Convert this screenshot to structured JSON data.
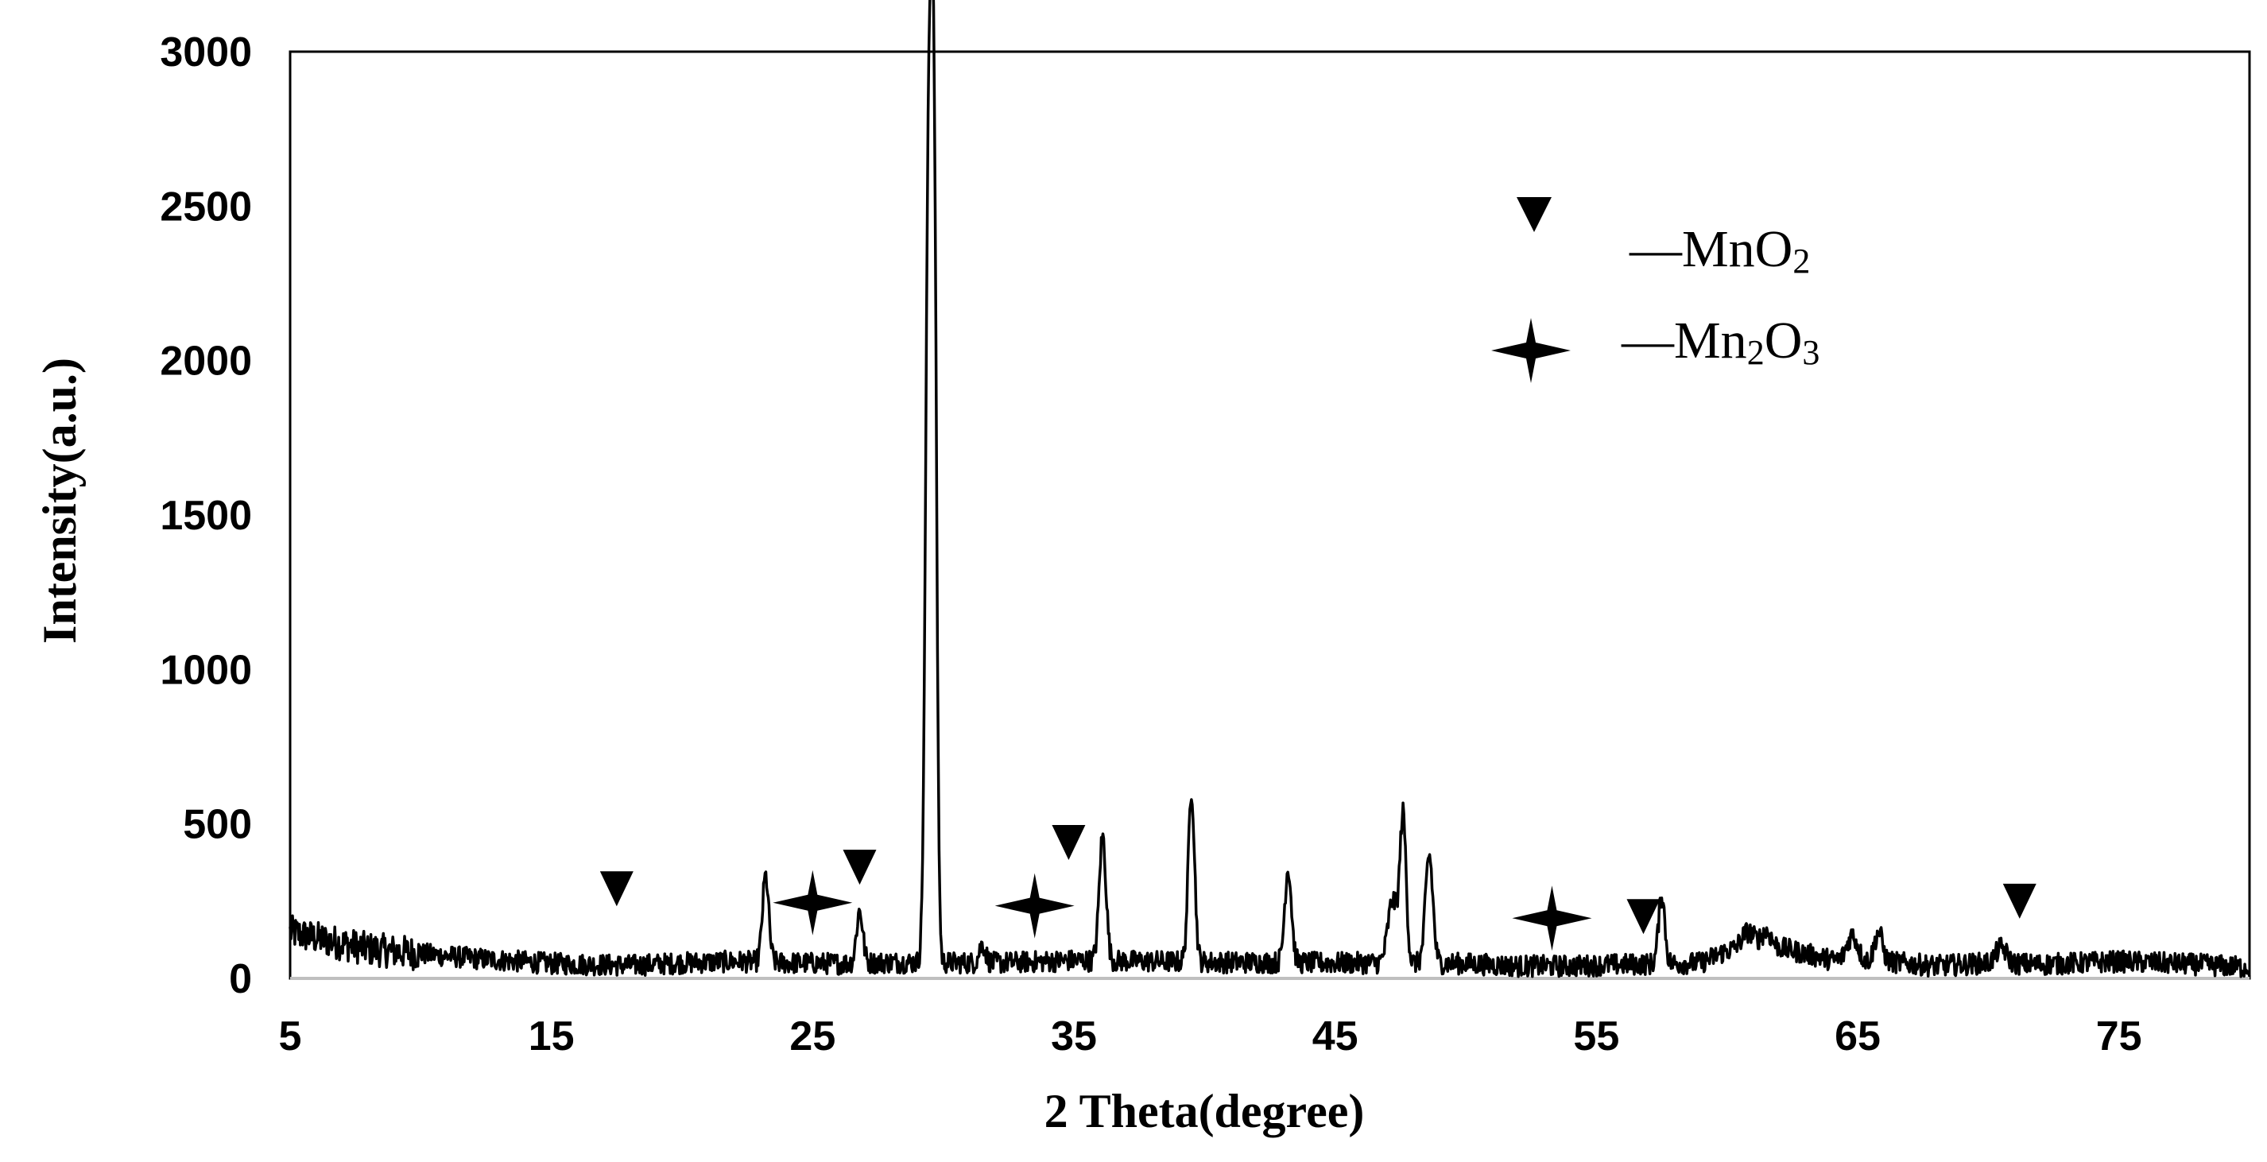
{
  "chart_data": {
    "type": "line",
    "title": "",
    "xlabel": "2 Theta(degree)",
    "ylabel": "Intensity(a.u.)",
    "xlim": [
      5,
      80
    ],
    "ylim": [
      0,
      3000
    ],
    "x_ticks": [
      5,
      15,
      25,
      35,
      45,
      55,
      65,
      75
    ],
    "y_ticks": [
      0,
      500,
      1000,
      1500,
      2000,
      2500,
      3000
    ],
    "grid": false,
    "legend_position": "top-right",
    "baseline": {
      "x": [
        5,
        6,
        8,
        10,
        12,
        15,
        18,
        20,
        22,
        24,
        26,
        28,
        32,
        35,
        38,
        41,
        42,
        45,
        46,
        50,
        52,
        54,
        56,
        59,
        60,
        62,
        64,
        66,
        68,
        70,
        72,
        75,
        78,
        80
      ],
      "y": [
        150,
        130,
        95,
        80,
        65,
        48,
        42,
        50,
        55,
        50,
        48,
        52,
        50,
        58,
        55,
        52,
        52,
        50,
        50,
        48,
        40,
        40,
        45,
        50,
        90,
        100,
        60,
        55,
        40,
        50,
        45,
        55,
        45,
        35
      ]
    },
    "peaks": [
      {
        "x": 23.2,
        "y": 330,
        "w": 0.12
      },
      {
        "x": 26.8,
        "y": 220,
        "w": 0.12
      },
      {
        "x": 29.45,
        "y": 2720,
        "w": 0.12
      },
      {
        "x": 29.65,
        "y": 2300,
        "w": 0.1
      },
      {
        "x": 31.5,
        "y": 110,
        "w": 0.12
      },
      {
        "x": 36.1,
        "y": 460,
        "w": 0.13
      },
      {
        "x": 39.5,
        "y": 610,
        "w": 0.12
      },
      {
        "x": 43.2,
        "y": 355,
        "w": 0.13
      },
      {
        "x": 47.2,
        "y": 250,
        "w": 0.18
      },
      {
        "x": 47.6,
        "y": 520,
        "w": 0.12
      },
      {
        "x": 48.6,
        "y": 400,
        "w": 0.14
      },
      {
        "x": 57.5,
        "y": 270,
        "w": 0.12
      },
      {
        "x": 60.8,
        "y": 150,
        "w": 0.25
      },
      {
        "x": 61.5,
        "y": 150,
        "w": 0.2
      },
      {
        "x": 64.8,
        "y": 140,
        "w": 0.2
      },
      {
        "x": 65.8,
        "y": 150,
        "w": 0.15
      },
      {
        "x": 70.5,
        "y": 100,
        "w": 0.2
      }
    ],
    "markers_mno2": [
      {
        "x": 17.5,
        "y": 290
      },
      {
        "x": 26.8,
        "y": 360
      },
      {
        "x": 34.8,
        "y": 440
      },
      {
        "x": 56.8,
        "y": 200
      },
      {
        "x": 71.2,
        "y": 250
      }
    ],
    "markers_mn2o3": [
      {
        "x": 25.0,
        "y": 245
      },
      {
        "x": 33.5,
        "y": 235
      },
      {
        "x": 53.3,
        "y": 195
      }
    ]
  },
  "legend": {
    "mno2": {
      "dash": "—",
      "main": "MnO",
      "sub": "2"
    },
    "mn2o3": {
      "dash": "—",
      "part1": "Mn",
      "sub1": "2",
      "part2": "O",
      "sub2": "3"
    }
  },
  "colors": {
    "line": "#000000",
    "axis": "#000000",
    "zero_line": "#bfbfbf"
  }
}
